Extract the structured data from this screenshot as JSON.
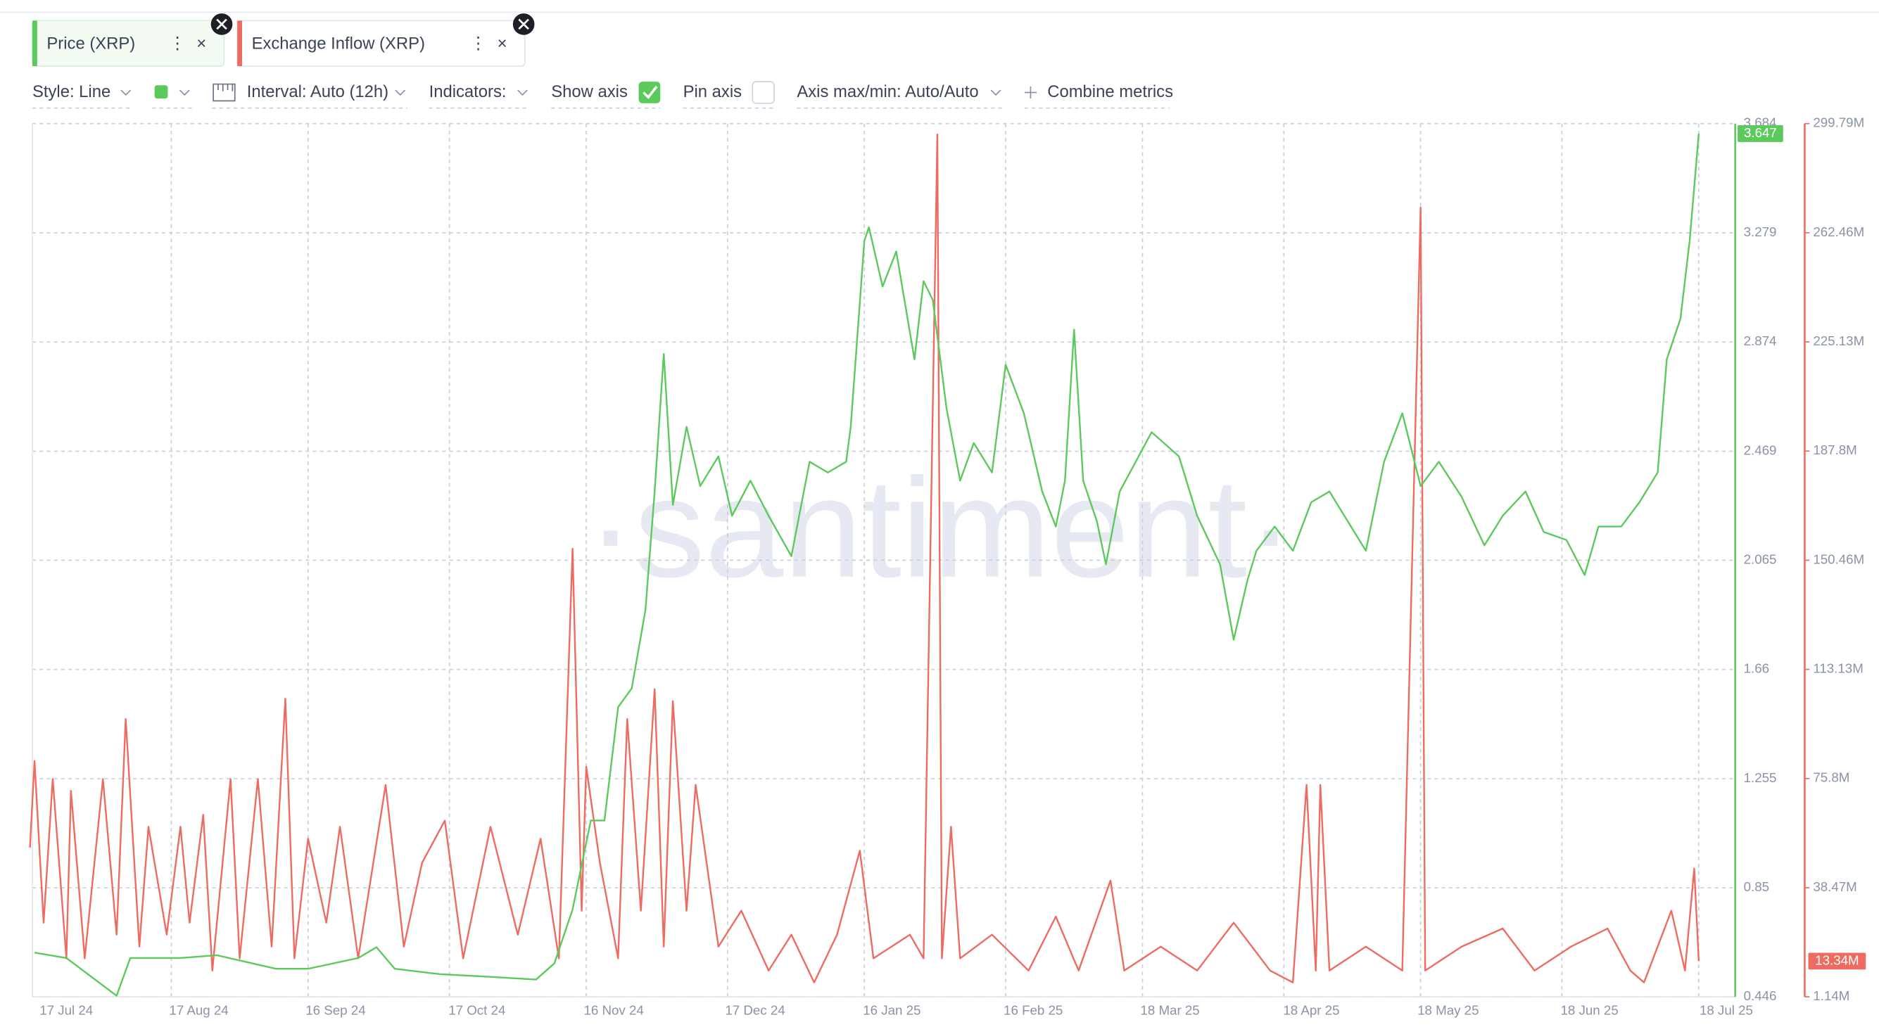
{
  "ui": {
    "tabs": [
      "Price (XRP)",
      "Exchange Inflow (XRP)"
    ],
    "toolbar": {
      "style": "Style: Line",
      "interval": "Interval: Auto (12h)",
      "indicators": "Indicators:",
      "show_axis": "Show axis",
      "pin_axis": "Pin axis",
      "axis_maxmin": "Axis max/min: Auto/Auto",
      "combine": "Combine metrics"
    },
    "watermark": "·santiment·"
  },
  "chart_data": {
    "type": "line",
    "grid": true,
    "xlim": [
      "2024-07-17",
      "2025-07-26"
    ],
    "xticks": [
      {
        "value": "2024-07-17",
        "label": "17 Jul 24"
      },
      {
        "value": "2024-08-17",
        "label": "17 Aug 24"
      },
      {
        "value": "2024-09-16",
        "label": "16 Sep 24"
      },
      {
        "value": "2024-10-17",
        "label": "17 Oct 24"
      },
      {
        "value": "2024-11-16",
        "label": "16 Nov 24"
      },
      {
        "value": "2024-12-17",
        "label": "17 Dec 24"
      },
      {
        "value": "2025-01-16",
        "label": "16 Jan 25"
      },
      {
        "value": "2025-02-16",
        "label": "16 Feb 25"
      },
      {
        "value": "2025-03-18",
        "label": "18 Mar 25"
      },
      {
        "value": "2025-04-18",
        "label": "18 Apr 25"
      },
      {
        "value": "2025-05-18",
        "label": "18 May 25"
      },
      {
        "value": "2025-06-18",
        "label": "18 Jun 25"
      },
      {
        "value": "2025-07-18",
        "label": "18 Jul 25"
      }
    ],
    "ylim": [
      0.446,
      3.684
    ],
    "yticks": [
      0.446,
      0.85,
      1.255,
      1.66,
      2.065,
      2.469,
      2.874,
      3.279,
      3.684
    ],
    "y2lim": [
      1140000,
      299790000
    ],
    "y2ticks": [
      {
        "value": 1140000,
        "label": "1.14M"
      },
      {
        "value": 38470000,
        "label": "38.47M"
      },
      {
        "value": 75800000,
        "label": "75.8M"
      },
      {
        "value": 113130000,
        "label": "113.13M"
      },
      {
        "value": 150460000,
        "label": "150.46M"
      },
      {
        "value": 187800000,
        "label": "187.8M"
      },
      {
        "value": 225130000,
        "label": "225.13M"
      },
      {
        "value": 262460000,
        "label": "262.46M"
      },
      {
        "value": 299790000,
        "label": "299.79M"
      }
    ],
    "series": [
      {
        "name": "Price (XRP)",
        "color": "#5cc95c",
        "x": [
          "2024-07-18",
          "2024-07-25",
          "2024-08-05",
          "2024-08-08",
          "2024-08-19",
          "2024-08-27",
          "2024-09-09",
          "2024-09-16",
          "2024-09-27",
          "2024-10-01",
          "2024-10-05",
          "2024-10-15",
          "2024-10-26",
          "2024-11-05",
          "2024-11-09",
          "2024-11-13",
          "2024-11-17",
          "2024-11-20",
          "2024-11-23",
          "2024-11-26",
          "2024-11-29",
          "2024-12-01",
          "2024-12-03",
          "2024-12-05",
          "2024-12-08",
          "2024-12-11",
          "2024-12-15",
          "2024-12-18",
          "2024-12-22",
          "2024-12-26",
          "2024-12-31",
          "2025-01-04",
          "2025-01-08",
          "2025-01-12",
          "2025-01-13",
          "2025-01-16",
          "2025-01-17",
          "2025-01-20",
          "2025-01-23",
          "2025-01-27",
          "2025-01-29",
          "2025-01-31",
          "2025-02-03",
          "2025-02-06",
          "2025-02-09",
          "2025-02-13",
          "2025-02-16",
          "2025-02-20",
          "2025-02-24",
          "2025-02-27",
          "2025-03-01",
          "2025-03-03",
          "2025-03-05",
          "2025-03-08",
          "2025-03-10",
          "2025-03-13",
          "2025-03-20",
          "2025-03-26",
          "2025-03-30",
          "2025-04-04",
          "2025-04-07",
          "2025-04-10",
          "2025-04-12",
          "2025-04-16",
          "2025-04-20",
          "2025-04-24",
          "2025-04-28",
          "2025-05-02",
          "2025-05-06",
          "2025-05-10",
          "2025-05-14",
          "2025-05-18",
          "2025-05-22",
          "2025-05-27",
          "2025-06-01",
          "2025-06-05",
          "2025-06-10",
          "2025-06-14",
          "2025-06-19",
          "2025-06-23",
          "2025-06-26",
          "2025-07-01",
          "2025-07-05",
          "2025-07-09",
          "2025-07-11",
          "2025-07-14",
          "2025-07-16",
          "2025-07-18"
        ],
        "values": [
          0.61,
          0.59,
          0.45,
          0.59,
          0.59,
          0.6,
          0.55,
          0.55,
          0.59,
          0.63,
          0.55,
          0.53,
          0.52,
          0.51,
          0.57,
          0.77,
          1.1,
          1.1,
          1.52,
          1.59,
          1.88,
          2.32,
          2.83,
          2.27,
          2.56,
          2.34,
          2.45,
          2.23,
          2.36,
          2.23,
          2.08,
          2.43,
          2.39,
          2.43,
          2.56,
          3.25,
          3.3,
          3.08,
          3.21,
          2.81,
          3.1,
          3.03,
          2.63,
          2.36,
          2.5,
          2.39,
          2.79,
          2.61,
          2.32,
          2.19,
          2.36,
          2.92,
          2.36,
          2.21,
          2.05,
          2.32,
          2.54,
          2.45,
          2.23,
          2.05,
          1.77,
          1.99,
          2.1,
          2.19,
          2.1,
          2.28,
          2.32,
          2.21,
          2.1,
          2.43,
          2.61,
          2.34,
          2.43,
          2.3,
          2.12,
          2.23,
          2.32,
          2.17,
          2.14,
          2.01,
          2.19,
          2.19,
          2.28,
          2.39,
          2.81,
          2.96,
          3.25,
          3.647
        ]
      },
      {
        "name": "Exchange Inflow (XRP)",
        "color": "#ee6b61",
        "axis": "y2",
        "last_label": "13.34M",
        "x": [
          "2024-07-17",
          "2024-07-18",
          "2024-07-20",
          "2024-07-22",
          "2024-07-25",
          "2024-07-26",
          "2024-07-29",
          "2024-08-02",
          "2024-08-05",
          "2024-08-07",
          "2024-08-10",
          "2024-08-12",
          "2024-08-16",
          "2024-08-19",
          "2024-08-21",
          "2024-08-24",
          "2024-08-26",
          "2024-08-30",
          "2024-09-01",
          "2024-09-05",
          "2024-09-08",
          "2024-09-11",
          "2024-09-13",
          "2024-09-16",
          "2024-09-20",
          "2024-09-23",
          "2024-09-27",
          "2024-10-03",
          "2024-10-07",
          "2024-10-11",
          "2024-10-16",
          "2024-10-20",
          "2024-10-26",
          "2024-11-01",
          "2024-11-06",
          "2024-11-10",
          "2024-11-13",
          "2024-11-15",
          "2024-11-16",
          "2024-11-19",
          "2024-11-23",
          "2024-11-25",
          "2024-11-28",
          "2024-12-01",
          "2024-12-03",
          "2024-12-05",
          "2024-12-08",
          "2024-12-10",
          "2024-12-15",
          "2024-12-20",
          "2024-12-26",
          "2024-12-31",
          "2025-01-05",
          "2025-01-10",
          "2025-01-15",
          "2025-01-18",
          "2025-01-26",
          "2025-01-29",
          "2025-02-01",
          "2025-02-02",
          "2025-02-04",
          "2025-02-06",
          "2025-02-13",
          "2025-02-21",
          "2025-02-27",
          "2025-03-04",
          "2025-03-11",
          "2025-03-14",
          "2025-03-22",
          "2025-03-30",
          "2025-04-07",
          "2025-04-15",
          "2025-04-20",
          "2025-04-23",
          "2025-04-25",
          "2025-04-26",
          "2025-04-28",
          "2025-05-06",
          "2025-05-14",
          "2025-05-18",
          "2025-05-19",
          "2025-05-27",
          "2025-06-05",
          "2025-06-12",
          "2025-06-20",
          "2025-06-28",
          "2025-07-03",
          "2025-07-06",
          "2025-07-12",
          "2025-07-15",
          "2025-07-17",
          "2025-07-18"
        ],
        "values": [
          52200000,
          81800000,
          26500000,
          75600000,
          14300000,
          71600000,
          14300000,
          75600000,
          22400000,
          96200000,
          18300000,
          59300000,
          22400000,
          59300000,
          26500000,
          63400000,
          10100000,
          75600000,
          14300000,
          75600000,
          18300000,
          103100000,
          14300000,
          55200000,
          26500000,
          59300000,
          14300000,
          73600000,
          18300000,
          47000000,
          61400000,
          14300000,
          59300000,
          22400000,
          55200000,
          14300000,
          154400000,
          30600000,
          79800000,
          47000000,
          14300000,
          96200000,
          30600000,
          106400000,
          18300000,
          102300000,
          30600000,
          73600000,
          18300000,
          30600000,
          10100000,
          22400000,
          6060000,
          22400000,
          51100000,
          14300000,
          22400000,
          14300000,
          296100000,
          14300000,
          59300000,
          14300000,
          22400000,
          10100000,
          28600000,
          10100000,
          40900000,
          10100000,
          18300000,
          10100000,
          26500000,
          10100000,
          6060000,
          73600000,
          10100000,
          73600000,
          10100000,
          18300000,
          10100000,
          271100000,
          10100000,
          18300000,
          24500000,
          10100000,
          18300000,
          24500000,
          10100000,
          6060000,
          30600000,
          10100000,
          45000000,
          13340000
        ]
      }
    ]
  }
}
